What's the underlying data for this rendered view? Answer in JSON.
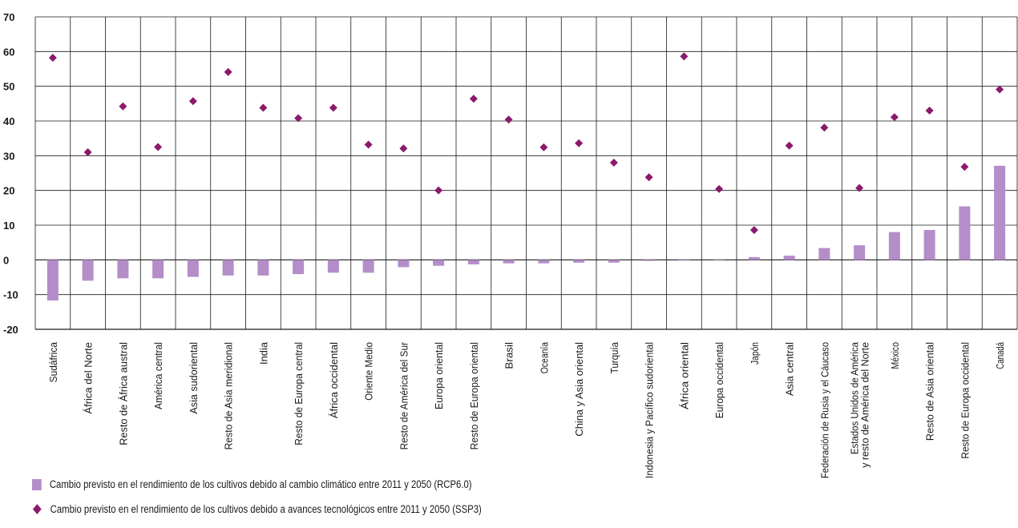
{
  "chart_data": {
    "type": "bar+scatter",
    "categories": [
      "Sudáfrica",
      "África del Norte",
      "Resto de África austral",
      "América central",
      "Asia sudoriental",
      "Resto de Asia meridional",
      "India",
      "Resto de Europa central",
      "África occidental",
      "Oriente Medio",
      "Resto de América del Sur",
      "Europa oriental",
      "Resto de Europa oriental",
      "Brasil",
      "Oceanía",
      "China y Asia oriental",
      "Turquía",
      "Indonesia y Pacífico sudoriental",
      "África oriental",
      "Europa occidental",
      "Japón",
      "Asia central",
      "Federación de Rusia y el Cáucaso",
      "Estados Unidos de América\ny resto de América del Norte",
      "México",
      "Resto de Asia oriental",
      "Resto de Europa occidental",
      "Canadá"
    ],
    "series": [
      {
        "name": "Cambio previsto en el rendimiento de los cultivos debido al cambio climático entre 2011 y 2050 (RCP6.0)",
        "type": "bar",
        "color": "#b48dc9",
        "values": [
          -11.7,
          -6.0,
          -5.3,
          -5.3,
          -4.9,
          -4.5,
          -4.5,
          -4.1,
          -3.7,
          -3.7,
          -2.1,
          -1.7,
          -1.3,
          -1.0,
          -1.0,
          -0.8,
          -0.8,
          -0.3,
          -0.2,
          -0.2,
          0.8,
          1.2,
          3.4,
          4.2,
          8.0,
          8.6,
          15.4,
          27.1
        ]
      },
      {
        "name": "Cambio previsto en el rendimiento de los cultivos debido a avances tecnológicos entre 2011 y 2050 (SSP3)",
        "type": "scatter",
        "color": "#8b1a6b",
        "values": [
          58.2,
          31.0,
          44.2,
          32.5,
          45.7,
          54.1,
          43.8,
          40.8,
          43.8,
          33.2,
          32.1,
          20.0,
          46.4,
          40.4,
          32.4,
          33.6,
          28.0,
          23.8,
          58.6,
          20.4,
          8.6,
          32.9,
          38.1,
          20.7,
          41.1,
          43.0,
          26.8,
          49.1
        ]
      }
    ],
    "ylim": [
      -20,
      70
    ],
    "yticks": [
      -20,
      -10,
      0,
      10,
      20,
      30,
      40,
      50,
      60,
      70
    ],
    "grid": true,
    "legend_position": "bottom-left"
  }
}
